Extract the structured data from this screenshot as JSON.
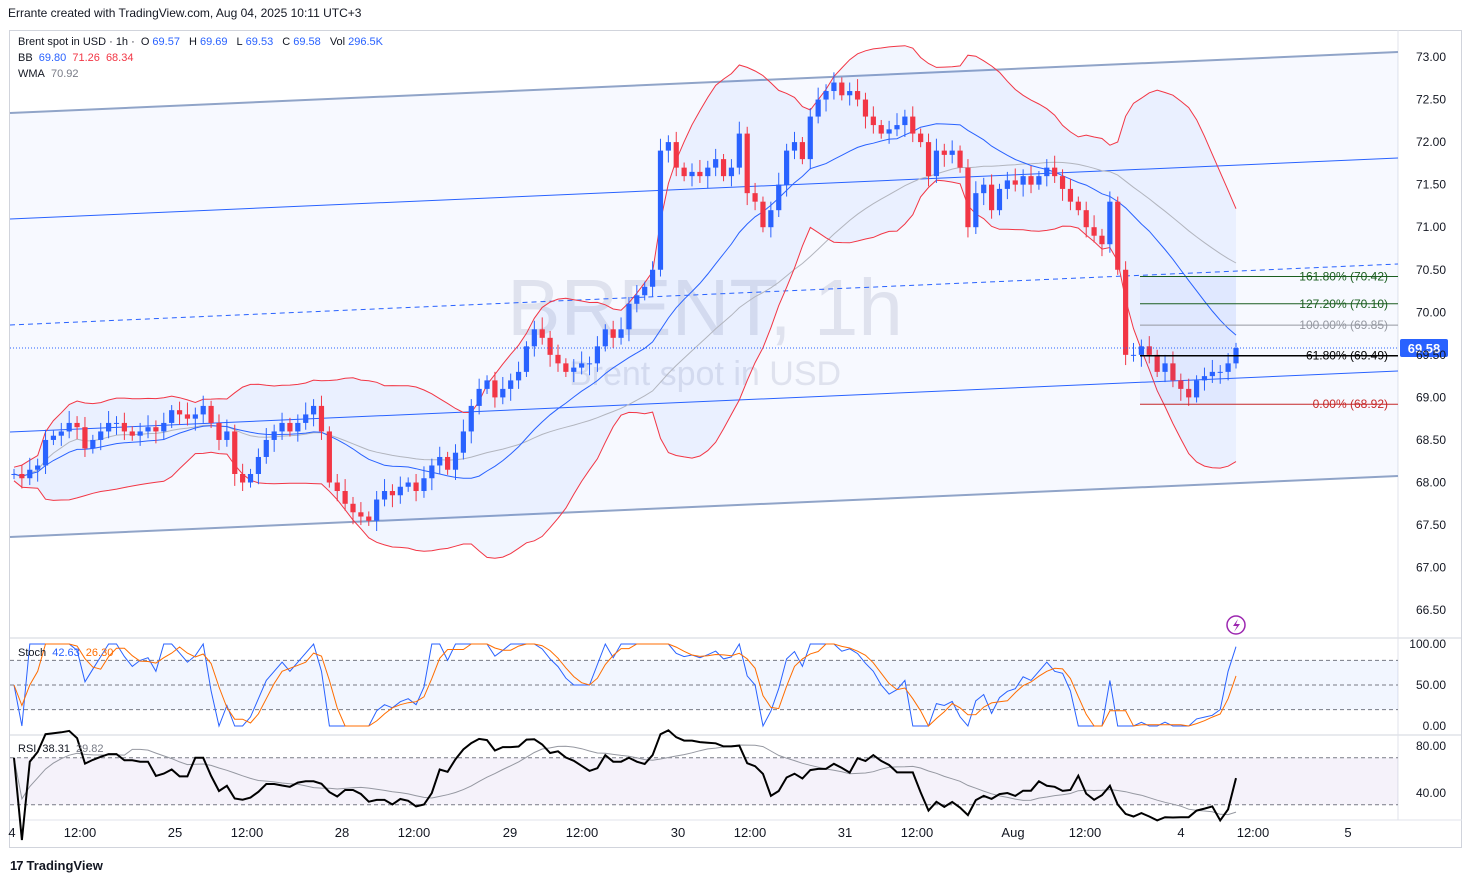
{
  "header": {
    "text": "Errante created with TradingView.com, Aug 04, 2025 10:11 UTC+3"
  },
  "legend": {
    "symbol": "Brent spot in USD · 1h ·",
    "o_label": "O",
    "o_val": "69.57",
    "h_label": "H",
    "h_val": "69.69",
    "l_label": "L",
    "l_val": "69.53",
    "c_label": "C",
    "c_val": "69.58",
    "vol_label": "Vol",
    "vol_val": "296.5K",
    "bb_label": "BB",
    "bb_mid": "69.80",
    "bb_up": "71.26",
    "bb_low": "68.34",
    "wma_label": "WMA",
    "wma_val": "70.92",
    "stoch_label": "Stoch",
    "stoch_k": "42.63",
    "stoch_d": "26.30",
    "rsi_label": "RSI",
    "rsi_val": "38.31",
    "rsi_ma": "29.82"
  },
  "watermark": {
    "title": "BRENT, 1h",
    "subtitle": "Brent spot in USD"
  },
  "price_badge": "69.58",
  "fib_labels": [
    "161.80% (70.42)",
    "127.20% (70.10)",
    "100.00% (69.85)",
    "61.80% (69.49)",
    "0.00% (68.92)"
  ],
  "footer": {
    "brand": "TradingView"
  },
  "colors": {
    "up": "#2962ff",
    "down": "#f23645",
    "bb": "#f23645",
    "bb_mid": "#2962ff",
    "wma": "#b2b5be",
    "channel": "#90a4c8",
    "stoch_k": "#2962ff",
    "stoch_d": "#ff6d00",
    "rsi": "#000000",
    "fib_green": "#1b5e20",
    "fib_red": "#c62828",
    "fib_grey": "#9598a1"
  },
  "chart_data": {
    "type": "candlestick",
    "title": "BRENT, 1h",
    "price_axis": {
      "ticks": [
        "73.00",
        "72.50",
        "72.00",
        "71.50",
        "71.00",
        "70.50",
        "70.00",
        "69.50",
        "69.00",
        "68.50",
        "68.00",
        "67.50",
        "67.00",
        "66.50"
      ],
      "range": [
        66.5,
        73.0
      ]
    },
    "time_axis": [
      "4",
      "12:00",
      "25",
      "12:00",
      "28",
      "12:00",
      "29",
      "12:00",
      "30",
      "12:00",
      "31",
      "12:00",
      "Aug",
      "12:00",
      "4",
      "12:00",
      "5"
    ],
    "stoch_axis": [
      "100.00",
      "50.00",
      "0.00"
    ],
    "rsi_axis": [
      "80.00",
      "40.00"
    ],
    "series_close_approx": [
      68.1,
      68.05,
      68.15,
      68.2,
      68.5,
      68.55,
      68.6,
      68.7,
      68.65,
      68.4,
      68.5,
      68.6,
      68.7,
      68.7,
      68.6,
      68.55,
      68.6,
      68.65,
      68.6,
      68.7,
      68.85,
      68.8,
      68.75,
      68.8,
      68.9,
      68.7,
      68.5,
      68.6,
      68.1,
      68.0,
      68.1,
      68.3,
      68.5,
      68.6,
      68.7,
      68.6,
      68.7,
      68.8,
      68.9,
      68.6,
      68.0,
      67.9,
      67.75,
      67.65,
      67.6,
      67.55,
      67.8,
      67.9,
      67.85,
      67.95,
      68.0,
      67.9,
      68.05,
      68.2,
      68.3,
      68.15,
      68.35,
      68.6,
      68.9,
      69.1,
      69.2,
      69.0,
      69.1,
      69.2,
      69.3,
      69.6,
      69.8,
      69.7,
      69.5,
      69.4,
      69.3,
      69.35,
      69.4,
      69.4,
      69.6,
      69.8,
      69.7,
      69.8,
      70.1,
      70.2,
      70.3,
      70.5,
      71.9,
      72.0,
      71.7,
      71.6,
      71.65,
      71.6,
      71.7,
      71.8,
      71.6,
      71.7,
      72.1,
      71.4,
      71.3,
      71.0,
      71.2,
      71.5,
      71.9,
      72.0,
      71.8,
      72.3,
      72.5,
      72.6,
      72.7,
      72.55,
      72.6,
      72.5,
      72.3,
      72.2,
      72.1,
      72.15,
      72.2,
      72.3,
      72.1,
      72.0,
      71.6,
      71.9,
      71.85,
      71.9,
      71.7,
      71.0,
      71.4,
      71.5,
      71.2,
      71.45,
      71.55,
      71.5,
      71.6,
      71.5,
      71.6,
      71.7,
      71.6,
      71.45,
      71.3,
      71.2,
      71.0,
      70.9,
      70.8,
      71.3,
      70.5,
      69.5,
      69.5,
      69.6,
      69.5,
      69.3,
      69.4,
      69.2,
      69.1,
      69.0,
      69.2,
      69.25,
      69.3,
      69.3,
      69.4,
      69.58
    ],
    "fib_levels": [
      {
        "pct": "161.80%",
        "value": 70.42
      },
      {
        "pct": "127.20%",
        "value": 70.1
      },
      {
        "pct": "100.00%",
        "value": 69.85
      },
      {
        "pct": "61.80%",
        "value": 69.49
      },
      {
        "pct": "0.00%",
        "value": 68.92
      }
    ],
    "last_price": 69.58
  }
}
